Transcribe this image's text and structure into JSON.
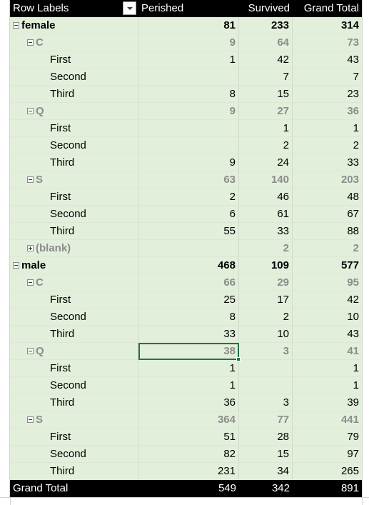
{
  "header": {
    "row_labels": "Row Labels",
    "perished": "Perished",
    "survived": "Survived",
    "grand_total": "Grand Total"
  },
  "rows": [
    {
      "level": 1,
      "toggle": "minus",
      "label": "female",
      "perished": "81",
      "survived": "233",
      "total": "314"
    },
    {
      "level": 2,
      "toggle": "minus",
      "label": "C",
      "perished": "9",
      "survived": "64",
      "total": "73"
    },
    {
      "level": 3,
      "label": "First",
      "perished": "1",
      "survived": "42",
      "total": "43"
    },
    {
      "level": 3,
      "label": "Second",
      "perished": "",
      "survived": "7",
      "total": "7"
    },
    {
      "level": 3,
      "label": "Third",
      "perished": "8",
      "survived": "15",
      "total": "23"
    },
    {
      "level": 2,
      "toggle": "minus",
      "label": "Q",
      "perished": "9",
      "survived": "27",
      "total": "36"
    },
    {
      "level": 3,
      "label": "First",
      "perished": "",
      "survived": "1",
      "total": "1"
    },
    {
      "level": 3,
      "label": "Second",
      "perished": "",
      "survived": "2",
      "total": "2"
    },
    {
      "level": 3,
      "label": "Third",
      "perished": "9",
      "survived": "24",
      "total": "33"
    },
    {
      "level": 2,
      "toggle": "minus",
      "label": "S",
      "perished": "63",
      "survived": "140",
      "total": "203"
    },
    {
      "level": 3,
      "label": "First",
      "perished": "2",
      "survived": "46",
      "total": "48"
    },
    {
      "level": 3,
      "label": "Second",
      "perished": "6",
      "survived": "61",
      "total": "67"
    },
    {
      "level": 3,
      "label": "Third",
      "perished": "55",
      "survived": "33",
      "total": "88"
    },
    {
      "level": 2,
      "toggle": "plus",
      "label": "(blank)",
      "perished": "",
      "survived": "2",
      "total": "2"
    },
    {
      "level": 1,
      "toggle": "minus",
      "label": "male",
      "perished": "468",
      "survived": "109",
      "total": "577"
    },
    {
      "level": 2,
      "toggle": "minus",
      "label": "C",
      "perished": "66",
      "survived": "29",
      "total": "95"
    },
    {
      "level": 3,
      "label": "First",
      "perished": "25",
      "survived": "17",
      "total": "42"
    },
    {
      "level": 3,
      "label": "Second",
      "perished": "8",
      "survived": "2",
      "total": "10"
    },
    {
      "level": 3,
      "label": "Third",
      "perished": "33",
      "survived": "10",
      "total": "43"
    },
    {
      "level": 2,
      "toggle": "minus",
      "label": "Q",
      "perished": "38",
      "survived": "3",
      "total": "41"
    },
    {
      "level": 3,
      "label": "First",
      "perished": "1",
      "survived": "",
      "total": "1"
    },
    {
      "level": 3,
      "label": "Second",
      "perished": "1",
      "survived": "",
      "total": "1"
    },
    {
      "level": 3,
      "label": "Third",
      "perished": "36",
      "survived": "3",
      "total": "39"
    },
    {
      "level": 2,
      "toggle": "minus",
      "label": "S",
      "perished": "364",
      "survived": "77",
      "total": "441"
    },
    {
      "level": 3,
      "label": "First",
      "perished": "51",
      "survived": "28",
      "total": "79"
    },
    {
      "level": 3,
      "label": "Second",
      "perished": "82",
      "survived": "15",
      "total": "97"
    },
    {
      "level": 3,
      "label": "Third",
      "perished": "231",
      "survived": "34",
      "total": "265"
    }
  ],
  "grand_total_row": {
    "label": "Grand Total",
    "perished": "549",
    "survived": "342",
    "total": "891"
  },
  "colors": {
    "header_bg": "#000000",
    "body_bg": "#e2efda",
    "subtotal_text": "#8c8c8c",
    "selection": "#217346"
  }
}
